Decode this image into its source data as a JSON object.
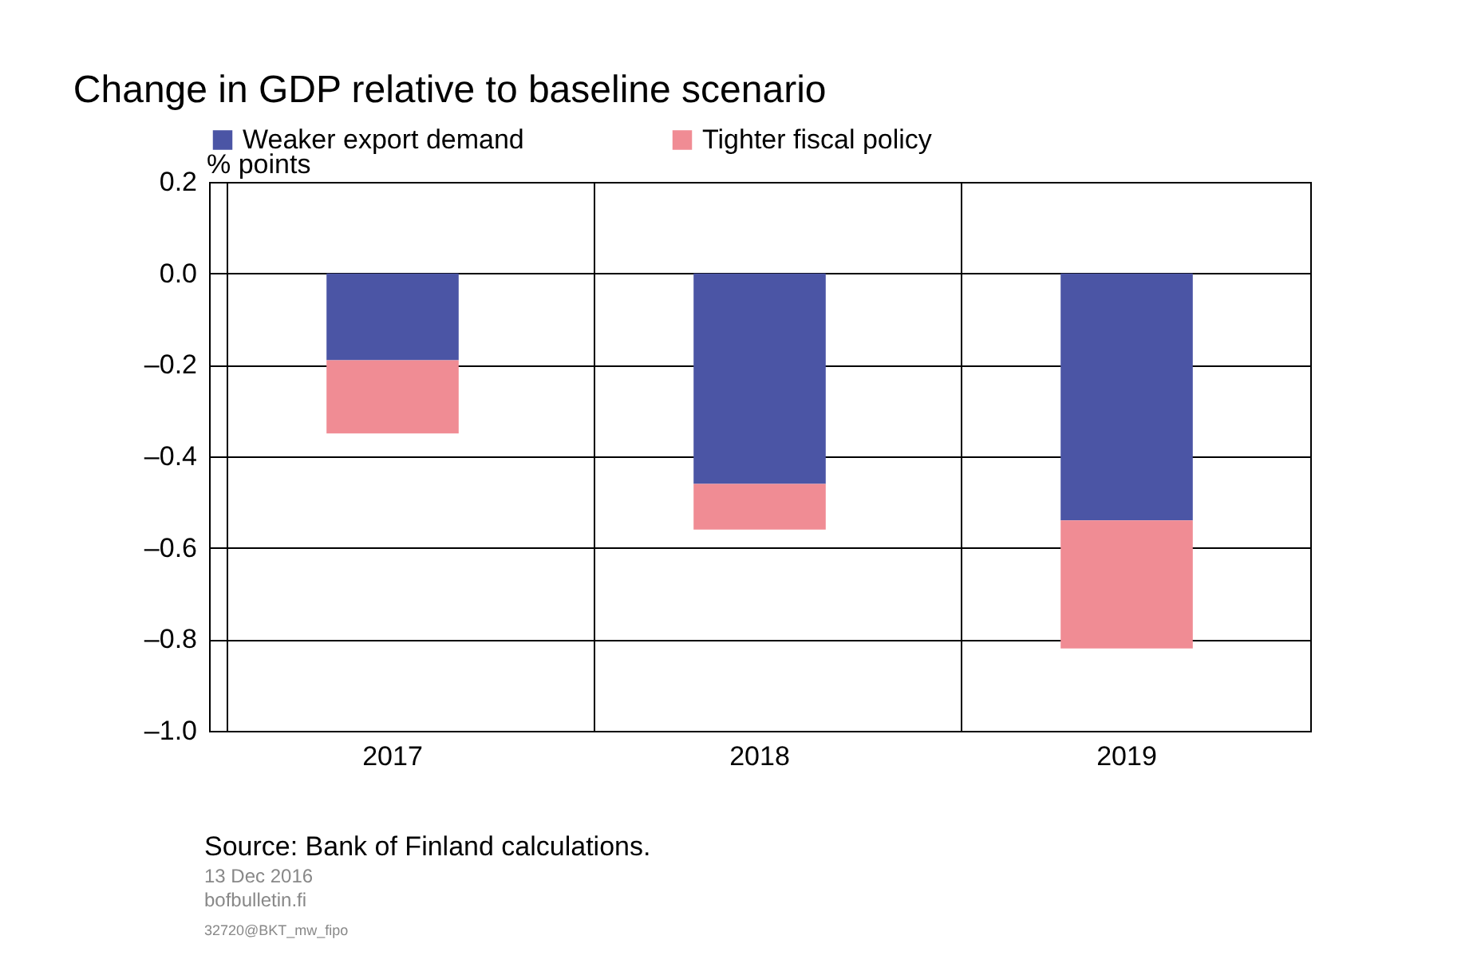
{
  "chart_data": {
    "type": "bar",
    "title": "Change in GDP relative to baseline scenario",
    "ylabel": "% points",
    "categories": [
      "2017",
      "2018",
      "2019"
    ],
    "stacked": true,
    "series": [
      {
        "name": "Weaker export demand",
        "color": "#4b55a5",
        "values": [
          -0.19,
          -0.46,
          -0.54
        ]
      },
      {
        "name": "Tighter fiscal policy",
        "color": "#f08c94",
        "values": [
          -0.16,
          -0.1,
          -0.28
        ]
      }
    ],
    "ylim": [
      -1.0,
      0.2
    ],
    "yticks": [
      {
        "value": -1.0,
        "label": "–1.0"
      },
      {
        "value": -0.8,
        "label": "–0.8"
      },
      {
        "value": -0.6,
        "label": "–0.6"
      },
      {
        "value": -0.4,
        "label": "–0.4"
      },
      {
        "value": -0.2,
        "label": "–0.2"
      },
      {
        "value": 0,
        "label": "0.0"
      },
      {
        "value": 0.2,
        "label": "0.2"
      }
    ],
    "grid": true,
    "legend": "top left",
    "annotations": [
      "Source: Bank of Finland calculations.",
      "13 Dec 2016",
      "bofbulletin.fi",
      "32720@BKT_mw_fipo"
    ]
  }
}
